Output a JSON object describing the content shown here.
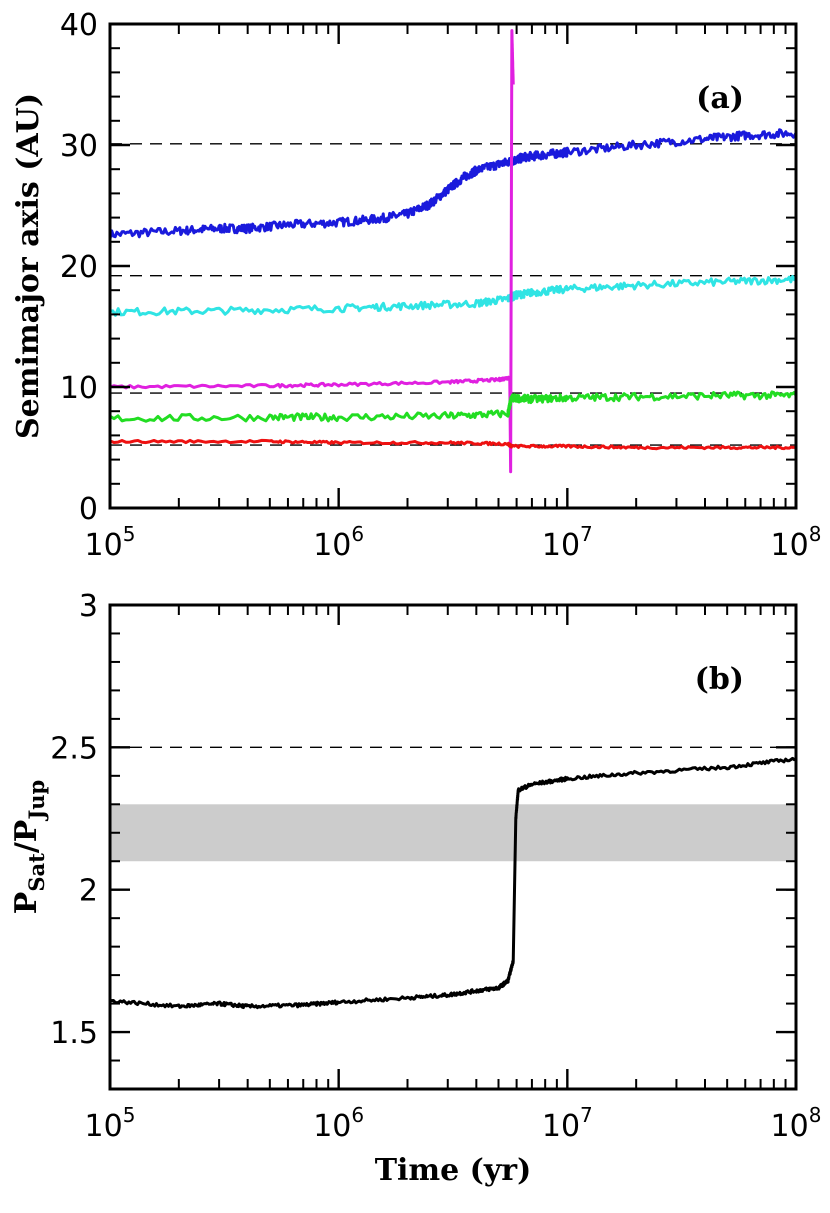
{
  "chart_data": [
    {
      "type": "line",
      "panel_label": "(a)",
      "xlabel": "",
      "ylabel": "Semimajor axis (AU)",
      "x_scale": "log",
      "xlim": [
        100000,
        100000000
      ],
      "ylim": [
        0,
        40
      ],
      "x_ticks": [
        {
          "base": "10",
          "exp": "5"
        },
        {
          "base": "10",
          "exp": "6"
        },
        {
          "base": "10",
          "exp": "7"
        },
        {
          "base": "10",
          "exp": "8"
        }
      ],
      "y_ticks": [
        "0",
        "10",
        "20",
        "30",
        "40"
      ],
      "y_tick_values": [
        0,
        10,
        20,
        30,
        40
      ],
      "reference_lines": [
        5.2,
        9.5,
        19.2,
        30.1
      ],
      "colors": {
        "ref": "#000000",
        "planet_blue": "#1a1adc",
        "planet_cyan": "#30e4e4",
        "planet_magenta": "#e020e0",
        "planet_green": "#22dd22",
        "planet_red": "#ee1111"
      },
      "series": [
        {
          "color": "#1a1adc",
          "width": 3,
          "noise": 0.35,
          "points": [
            [
              100000,
              22.6
            ],
            [
              200000,
              22.9
            ],
            [
              300000,
              23.1
            ],
            [
              400000,
              23.1
            ],
            [
              600000,
              23.4
            ],
            [
              1000000,
              23.6
            ],
            [
              1500000,
              23.9
            ],
            [
              2000000,
              24.3
            ],
            [
              2500000,
              25.1
            ],
            [
              3000000,
              26.3
            ],
            [
              3500000,
              27.3
            ],
            [
              4000000,
              27.9
            ],
            [
              5000000,
              28.4
            ],
            [
              5800000,
              28.7
            ],
            [
              6500000,
              29.0
            ],
            [
              8000000,
              29.2
            ],
            [
              10000000,
              29.4
            ],
            [
              20000000,
              30.0
            ],
            [
              40000000,
              30.5
            ],
            [
              60000000,
              30.8
            ],
            [
              100000000,
              31.0
            ]
          ]
        },
        {
          "color": "#30e4e4",
          "width": 3,
          "noise": 0.3,
          "points": [
            [
              100000,
              16.2
            ],
            [
              300000,
              16.3
            ],
            [
              1000000,
              16.5
            ],
            [
              2000000,
              16.7
            ],
            [
              4000000,
              16.9
            ],
            [
              5500000,
              17.3
            ],
            [
              6000000,
              17.6
            ],
            [
              7000000,
              17.8
            ],
            [
              10000000,
              18.1
            ],
            [
              20000000,
              18.4
            ],
            [
              50000000,
              18.7
            ],
            [
              100000000,
              18.9
            ]
          ]
        },
        {
          "color": "#e020e0",
          "width": 3,
          "noise": 0.12,
          "points": [
            [
              100000,
              10.0
            ],
            [
              500000,
              10.1
            ],
            [
              1000000,
              10.2
            ],
            [
              3000000,
              10.4
            ],
            [
              5000000,
              10.6
            ],
            [
              5600000,
              10.8
            ],
            [
              5650000,
              3.0
            ],
            [
              5720000,
              39.5
            ],
            [
              5800000,
              35.0
            ]
          ]
        },
        {
          "color": "#22dd22",
          "width": 3,
          "noise": 0.3,
          "points": [
            [
              100000,
              7.4
            ],
            [
              500000,
              7.5
            ],
            [
              1000000,
              7.5
            ],
            [
              3000000,
              7.6
            ],
            [
              5500000,
              7.8
            ],
            [
              5700000,
              9.1
            ],
            [
              7000000,
              9.0
            ],
            [
              10000000,
              9.1
            ],
            [
              20000000,
              9.2
            ],
            [
              50000000,
              9.3
            ],
            [
              100000000,
              9.3
            ]
          ]
        },
        {
          "color": "#ee1111",
          "width": 3,
          "noise": 0.1,
          "points": [
            [
              100000,
              5.5
            ],
            [
              500000,
              5.5
            ],
            [
              1000000,
              5.4
            ],
            [
              3000000,
              5.4
            ],
            [
              5500000,
              5.3
            ],
            [
              5700000,
              5.1
            ],
            [
              10000000,
              5.1
            ],
            [
              20000000,
              5.0
            ],
            [
              50000000,
              5.0
            ],
            [
              100000000,
              5.0
            ]
          ]
        }
      ]
    },
    {
      "type": "line",
      "panel_label": "(b)",
      "xlabel": "Time (yr)",
      "ylabel_main": "P",
      "ylabel_sub1": "Sat",
      "ylabel_mid": "/P",
      "ylabel_sub2": "Jup",
      "x_scale": "log",
      "xlim": [
        100000,
        100000000
      ],
      "ylim": [
        1.3,
        3.0
      ],
      "x_ticks": [
        {
          "base": "10",
          "exp": "5"
        },
        {
          "base": "10",
          "exp": "6"
        },
        {
          "base": "10",
          "exp": "7"
        },
        {
          "base": "10",
          "exp": "8"
        }
      ],
      "y_ticks": [
        "1.5",
        "2",
        "2.5",
        "3"
      ],
      "y_tick_values": [
        1.5,
        2.0,
        2.5,
        3.0
      ],
      "reference_lines": [
        2.5
      ],
      "shaded_band": [
        2.1,
        2.3
      ],
      "colors": {
        "band": "#cccccc",
        "line": "#000000",
        "ref": "#000000"
      },
      "series": [
        {
          "color": "#000000",
          "width": 3,
          "noise": 0.006,
          "points": [
            [
              100000,
              1.61
            ],
            [
              200000,
              1.59
            ],
            [
              300000,
              1.6
            ],
            [
              400000,
              1.59
            ],
            [
              700000,
              1.595
            ],
            [
              1000000,
              1.605
            ],
            [
              2000000,
              1.62
            ],
            [
              3000000,
              1.63
            ],
            [
              4000000,
              1.645
            ],
            [
              5000000,
              1.655
            ],
            [
              5500000,
              1.68
            ],
            [
              5800000,
              1.75
            ],
            [
              5950000,
              2.25
            ],
            [
              6100000,
              2.35
            ],
            [
              7000000,
              2.37
            ],
            [
              10000000,
              2.39
            ],
            [
              20000000,
              2.41
            ],
            [
              50000000,
              2.43
            ],
            [
              100000000,
              2.46
            ]
          ]
        }
      ]
    }
  ]
}
